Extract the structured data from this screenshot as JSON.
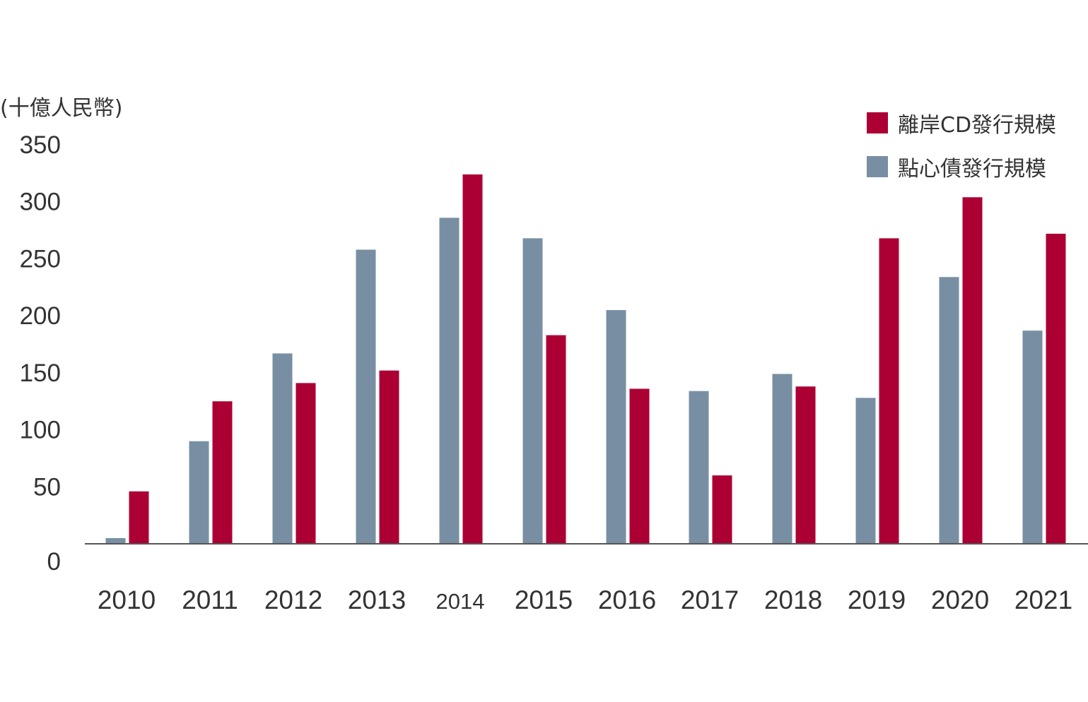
{
  "chart_data": {
    "type": "bar",
    "unit": "(十億人民幣)",
    "categories": [
      "2010",
      "2011",
      "2012",
      "2013",
      "2014",
      "2015",
      "2016",
      "2017",
      "2018",
      "2019",
      "2020",
      "2021"
    ],
    "series": [
      {
        "name": "點心債發行規模",
        "color": "#788fa3",
        "values": [
          5,
          90,
          167,
          258,
          286,
          268,
          205,
          134,
          149,
          128,
          234,
          187
        ]
      },
      {
        "name": "離岸CD發行規模",
        "color": "#ac0034",
        "values": [
          46,
          125,
          141,
          152,
          324,
          183,
          136,
          60,
          138,
          268,
          304,
          272
        ]
      }
    ],
    "ylim": [
      0,
      350
    ],
    "yticks": [
      0,
      50,
      100,
      150,
      200,
      250,
      300,
      350
    ],
    "grid": false,
    "legend_position": "top-right"
  }
}
